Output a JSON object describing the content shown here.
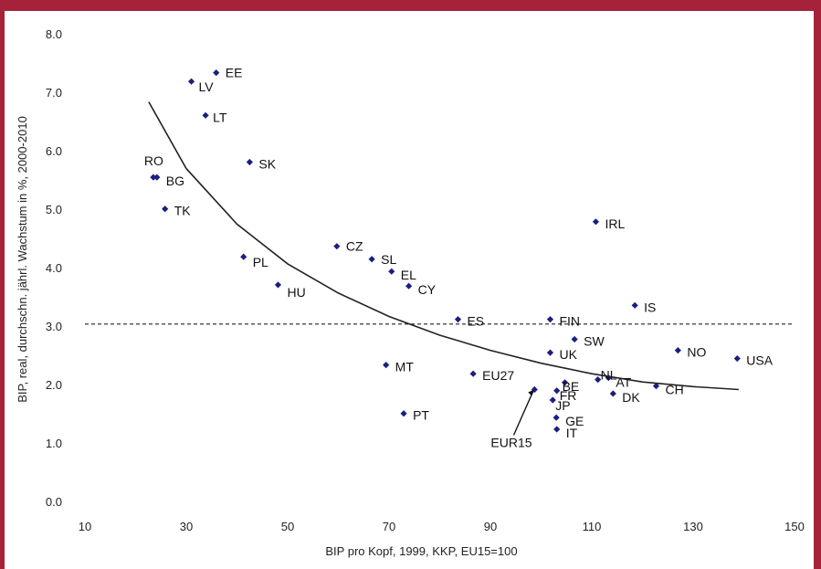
{
  "chart_data": {
    "type": "scatter",
    "title": "",
    "xlabel": "BIP pro Kopf, 1999, KKP, EU15=100",
    "ylabel": "BIP, real, durchschn. jährl. Wachstum in %, 2000-2010",
    "xlim": [
      10,
      150
    ],
    "ylim": [
      0,
      8
    ],
    "x_ticks": [
      "10",
      "30",
      "50",
      "70",
      "90",
      "110",
      "130",
      "150"
    ],
    "y_ticks": [
      "0.0",
      "1.0",
      "2.0",
      "3.0",
      "4.0",
      "5.0",
      "6.0",
      "7.0",
      "8.0"
    ],
    "grid": false,
    "reference_line_y": 3.05,
    "marker_color": "#1a1f80",
    "highlight_color": "#e8322d",
    "points": [
      {
        "label": "EE",
        "x": 35.9,
        "y": 7.35
      },
      {
        "label": "LV",
        "x": 31.0,
        "y": 7.2
      },
      {
        "label": "LT",
        "x": 33.8,
        "y": 6.62
      },
      {
        "label": "SK",
        "x": 42.5,
        "y": 5.82
      },
      {
        "label": "RO",
        "x": 23.5,
        "y": 5.56
      },
      {
        "label": "BG",
        "x": 24.2,
        "y": 5.56
      },
      {
        "label": "TK",
        "x": 25.8,
        "y": 5.02
      },
      {
        "label": "IRL",
        "x": 110.8,
        "y": 4.8
      },
      {
        "label": "CZ",
        "x": 59.7,
        "y": 4.38
      },
      {
        "label": "SL",
        "x": 66.6,
        "y": 4.16
      },
      {
        "label": "EL",
        "x": 70.5,
        "y": 3.95
      },
      {
        "label": "PL",
        "x": 41.3,
        "y": 4.2
      },
      {
        "label": "CY",
        "x": 73.9,
        "y": 3.7
      },
      {
        "label": "HU",
        "x": 48.1,
        "y": 3.72
      },
      {
        "label": "IS",
        "x": 118.5,
        "y": 3.37
      },
      {
        "label": "ES",
        "x": 83.6,
        "y": 3.13
      },
      {
        "label": "FIN",
        "x": 101.8,
        "y": 3.13
      },
      {
        "label": "SW",
        "x": 106.6,
        "y": 2.79
      },
      {
        "label": "NO",
        "x": 127.0,
        "y": 2.6
      },
      {
        "label": "UK",
        "x": 101.8,
        "y": 2.56
      },
      {
        "label": "USA",
        "x": 138.7,
        "y": 2.46
      },
      {
        "label": "MT",
        "x": 69.4,
        "y": 2.35
      },
      {
        "label": "EU27",
        "x": 86.6,
        "y": 2.2
      },
      {
        "label": "NL",
        "x": 111.2,
        "y": 2.1
      },
      {
        "label": "AT",
        "x": 113.3,
        "y": 2.13
      },
      {
        "label": "BE",
        "x": 104.7,
        "y": 2.05
      },
      {
        "label": "CH",
        "x": 122.7,
        "y": 1.99
      },
      {
        "label": "EUR15",
        "x": 98.7,
        "y": 1.93
      },
      {
        "label": "FR",
        "x": 103.1,
        "y": 1.91
      },
      {
        "label": "DK",
        "x": 114.2,
        "y": 1.86
      },
      {
        "label": "JP",
        "x": 102.3,
        "y": 1.75
      },
      {
        "label": "PT",
        "x": 72.9,
        "y": 1.52
      },
      {
        "label": "GE",
        "x": 103.0,
        "y": 1.45
      },
      {
        "label": "IT",
        "x": 103.1,
        "y": 1.25
      }
    ],
    "trendline": {
      "type": "logarithmic",
      "points": [
        {
          "x": 22.6,
          "y": 6.85
        },
        {
          "x": 30,
          "y": 5.71
        },
        {
          "x": 40,
          "y": 4.76
        },
        {
          "x": 50,
          "y": 4.08
        },
        {
          "x": 60,
          "y": 3.58
        },
        {
          "x": 70,
          "y": 3.18
        },
        {
          "x": 80,
          "y": 2.86
        },
        {
          "x": 90,
          "y": 2.6
        },
        {
          "x": 100,
          "y": 2.38
        },
        {
          "x": 110,
          "y": 2.2
        },
        {
          "x": 120,
          "y": 2.06
        },
        {
          "x": 130,
          "y": 1.98
        },
        {
          "x": 139,
          "y": 1.93
        }
      ]
    }
  }
}
